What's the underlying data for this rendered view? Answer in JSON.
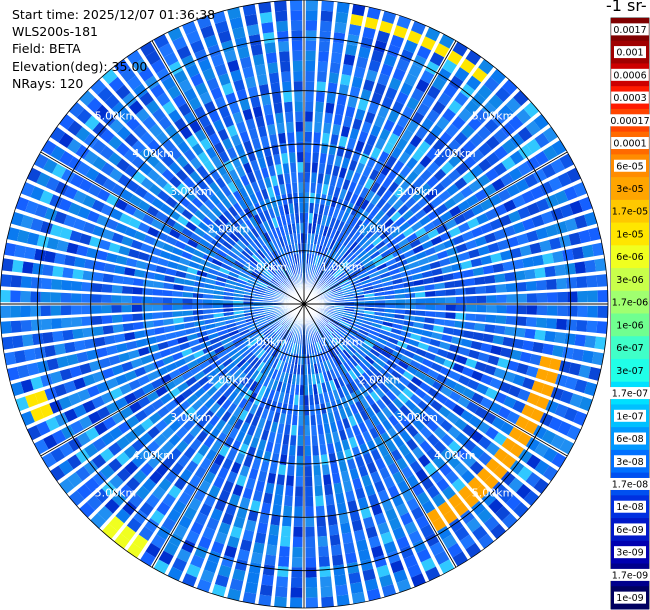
{
  "header": {
    "start_time": "Start time: 2025/12/07 01:36:38",
    "instrument": "WLS200s-181",
    "field": "Field: BETA",
    "elevation": "Elevation(deg): 35.00",
    "nrays": "NRays: 120"
  },
  "colorbar": {
    "title": "-1 sr-",
    "labels": [
      "0.0017",
      "0.001",
      "0.0006",
      "0.0003",
      "0.00017",
      "0.0001",
      "6e-05",
      "3e-05",
      "1.7e-05",
      "1e-05",
      "6e-06",
      "3e-06",
      "1.7e-06",
      "1e-06",
      "6e-07",
      "3e-07",
      "1.7e-07",
      "1e-07",
      "6e-08",
      "3e-08",
      "1.7e-08",
      "1e-08",
      "6e-09",
      "3e-09",
      "1.7e-09",
      "1e-09"
    ],
    "colors": [
      "#800000",
      "#a00000",
      "#cc0000",
      "#ff1a00",
      "#ff4500",
      "#ff6a00",
      "#ff8c00",
      "#ffa500",
      "#ffc800",
      "#ffe600",
      "#f0ff20",
      "#c8ff4a",
      "#a0ff70",
      "#70ff90",
      "#40ffc8",
      "#20ffe8",
      "#00e0ff",
      "#00c0ff",
      "#0098ff",
      "#0070ff",
      "#0050f0",
      "#0030e0",
      "#0018c8",
      "#0000b0",
      "#00008c",
      "#000060"
    ]
  },
  "chart_data": {
    "type": "ppi_polar",
    "title": "",
    "field": "BETA",
    "elevation_deg": 35.0,
    "n_rays": 120,
    "range_rings_km": [
      1,
      2,
      3,
      4,
      5
    ],
    "ring_labels": [
      "1.00km",
      "2.00km",
      "3.00km",
      "4.00km",
      "5.00km"
    ],
    "max_range_km": 5.7,
    "colorbar_scale": "log",
    "background_beta": "1e-07",
    "features": [
      {
        "azimuth_deg_from": 10,
        "azimuth_deg_to": 40,
        "range_km_from": 5.3,
        "range_km_to": 5.6,
        "beta": "1e-05"
      },
      {
        "azimuth_deg_from": 103,
        "azimuth_deg_to": 150,
        "range_km_from": 4.6,
        "range_km_to": 4.9,
        "beta": "3e-05"
      },
      {
        "azimuth_deg_from": 214,
        "azimuth_deg_to": 222,
        "range_km_from": 5.4,
        "range_km_to": 5.7,
        "beta": "6e-06"
      },
      {
        "azimuth_deg_from": 245,
        "azimuth_deg_to": 252,
        "range_km_from": 5.2,
        "range_km_to": 5.5,
        "beta": "1e-05"
      }
    ]
  }
}
